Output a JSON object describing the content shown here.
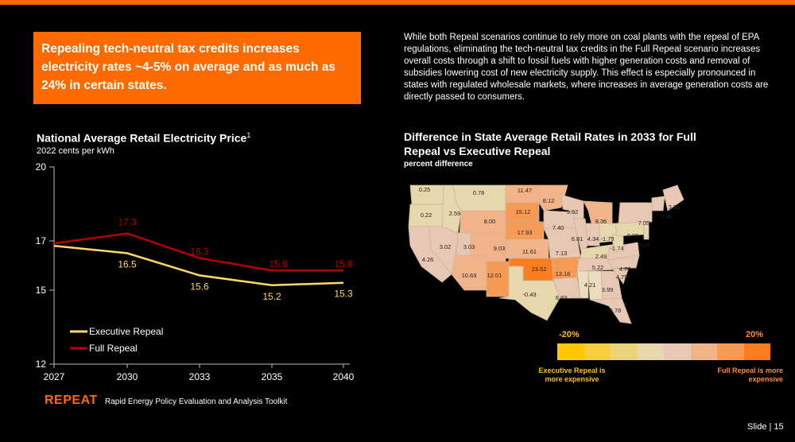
{
  "callout": {
    "text": "Repealing tech-neutral tax credits increases electricity rates ~4-5% on average and as much as 24% in certain states."
  },
  "paragraph": "While both Repeal scenarios continue to rely more on coal plants with the repeal of EPA regulations, eliminating the tech-neutral tax credits in the Full Repeal scenario increases overall costs through a shift to fossil fuels with higher generation costs and removal of subsidies lowering cost of new electricity supply. This effect is especially pronounced in states with regulated wholesale markets, where increases in average generation costs are directly passed to consumers.",
  "line_chart": {
    "title": "National Average Retail Electricity Price",
    "footnote": "1",
    "subtitle": "2022 cents per kWh"
  },
  "map_chart": {
    "title": "Difference in State Average Retail Rates in 2033 for Full Repeal vs Executive Repeal",
    "subtitle": "percent difference",
    "scale_min_label": "-20%",
    "scale_max_label": "20%",
    "scale_colors": [
      "#ffc800",
      "#f5cf3d",
      "#ecd27a",
      "#e6d7ad",
      "#e8c8b4",
      "#f2b38a",
      "#f79a55",
      "#fb7d1f"
    ],
    "note_left": "Executive Repeal is more expensive",
    "note_right": "Full Repeal is more expensive"
  },
  "chart_data": [
    {
      "type": "line",
      "title": "National Average Retail Electricity Price",
      "ylabel": "2022 cents per kWh",
      "x": [
        "2027",
        "2030",
        "2033",
        "2035",
        "2040"
      ],
      "ylim": [
        12,
        20
      ],
      "yticks": [
        "20",
        "17",
        "15",
        "12"
      ],
      "series": [
        {
          "name": "Executive Repeal",
          "color": "#ffd866",
          "values": [
            16.8,
            16.5,
            15.6,
            15.2,
            15.3
          ],
          "labels": [
            "",
            "16.5",
            "15.6",
            "15.2",
            "15.3"
          ]
        },
        {
          "name": "Full Repeal",
          "color": "#b30000",
          "values": [
            16.9,
            17.3,
            16.3,
            15.8,
            15.8
          ],
          "labels": [
            "",
            "17.3",
            "16.3",
            "15.8",
            "15.8"
          ]
        }
      ]
    },
    {
      "type": "heatmap",
      "title": "Difference in State Average Retail Rates in 2033 for Full Repeal vs Executive Repeal",
      "unit": "percent difference",
      "range": [
        -20,
        20
      ],
      "values": [
        {
          "state": "WA",
          "value": "0.25"
        },
        {
          "state": "MT",
          "value": "0.78"
        },
        {
          "state": "ND",
          "value": "11.47"
        },
        {
          "state": "MN",
          "value": "8.12"
        },
        {
          "state": "OR",
          "value": "0.22"
        },
        {
          "state": "ID",
          "value": "2.59"
        },
        {
          "state": "SD",
          "value": "15.12"
        },
        {
          "state": "WI",
          "value": "5.92"
        },
        {
          "state": "MI",
          "value": "8.36"
        },
        {
          "state": "NY",
          "value": "7.05"
        },
        {
          "state": "VT",
          "value": "3.46"
        },
        {
          "state": "ME",
          "value": "3.55"
        },
        {
          "state": "WY",
          "value": "8.00"
        },
        {
          "state": "NE",
          "value": "17.93"
        },
        {
          "state": "IA",
          "value": "7.40"
        },
        {
          "state": "IL",
          "value": "6.81"
        },
        {
          "state": "IN",
          "value": "4.34"
        },
        {
          "state": "OH",
          "value": "-1.75"
        },
        {
          "state": "PA",
          "value": "0.09"
        },
        {
          "state": "NJ",
          "value": "0.24"
        },
        {
          "state": "NV",
          "value": "3.02"
        },
        {
          "state": "UT",
          "value": "3.03"
        },
        {
          "state": "CO",
          "value": "9.03"
        },
        {
          "state": "KS",
          "value": "11.61"
        },
        {
          "state": "MO",
          "value": "7.13"
        },
        {
          "state": "WV",
          "value": "-1.74"
        },
        {
          "state": "KY",
          "value": "2.49"
        },
        {
          "state": "CA",
          "value": "4.26"
        },
        {
          "state": "VA",
          "value": "4.77"
        },
        {
          "state": "TN",
          "value": "5.22"
        },
        {
          "state": "NC",
          "value": "4.79"
        },
        {
          "state": "AZ",
          "value": "10.63"
        },
        {
          "state": "NM",
          "value": "12.01"
        },
        {
          "state": "OK",
          "value": "23.52"
        },
        {
          "state": "AR",
          "value": "13.16"
        },
        {
          "state": "SC",
          "value": "3.99"
        },
        {
          "state": "GA",
          "value": "4.21"
        },
        {
          "state": "TX",
          "value": "-0.43"
        },
        {
          "state": "LA",
          "value": "6.83"
        },
        {
          "state": "FL",
          "value": "5.78"
        }
      ]
    }
  ],
  "footer": {
    "brand": "REPEAT",
    "subtitle": "Rapid Energy Policy Evaluation and Analysis Toolkit",
    "slide": "Slide | 15"
  }
}
